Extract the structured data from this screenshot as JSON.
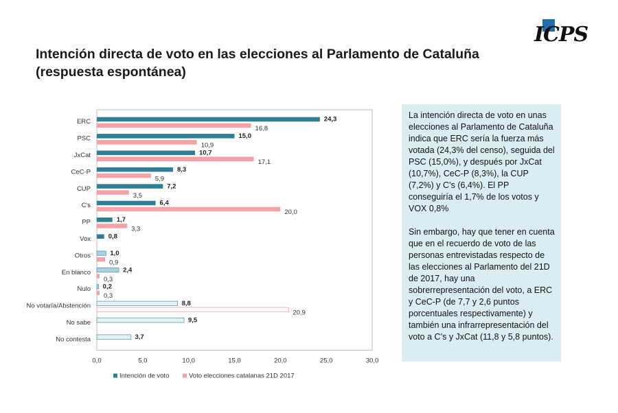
{
  "title": {
    "line1": "Intención directa de voto en las elecciones al Parlamento de Cataluña",
    "line2": "(respuesta espontánea)"
  },
  "logo": {
    "text": "ICPS",
    "icon": "blue-square-logo"
  },
  "note": {
    "paragraph1": "La intención directa de voto en unas elecciones al Parlamento de Cataluña indica que ERC sería la fuerza más votada (24,3% del censo), seguida del PSC (15,0%), y después por JxCat (10,7%), CeC-P (8,3%), la CUP (7,2%) y C’s (6,4%). El PP conseguiría el 1,7% de los votos y VOX 0,8%",
    "paragraph2": "Sin embargo, hay que tener en cuenta que en el recuerdo de voto de las personas entrevistadas respecto de las elecciones al Parlamento del 21D de 2017, hay una sobrerrepresentación del voto, a ERC y CeC-P  (de 7,7 y 2,6 puntos porcentuales respectivamente) y también una infrarrepresentación del voto a C’s y JxCat  (11,8 y 5,8 puntos)."
  },
  "colors": {
    "intencion": "#2e7f96",
    "voto2017": "#f4a1a8",
    "otros_intencion": "#a9cfe0",
    "light_fill": "#e4f1f7",
    "light_stroke": "#5b9fbf",
    "axis": "#bcbcbc"
  },
  "chart_data": {
    "type": "bar",
    "orientation": "horizontal",
    "categories": [
      "ERC",
      "PSC",
      "JxCat",
      "CeC-P",
      "CUP",
      "C's",
      "PP",
      "Vox",
      "Otros",
      "En blanco",
      "Nulo",
      "No votaría/Abstención",
      "No sabe",
      "No contesta"
    ],
    "series": [
      {
        "name": "Intención de voto",
        "values": [
          24.3,
          15.0,
          10.7,
          8.3,
          7.2,
          6.4,
          1.7,
          0.8,
          1.0,
          2.4,
          0.2,
          8.8,
          9.5,
          3.7
        ],
        "labels": [
          "24,3",
          "15,0",
          "10,7",
          "8,3",
          "7,2",
          "6,4",
          "1,7",
          "0,8",
          "1,0",
          "2,4",
          "0,2",
          "8,8",
          "9,5",
          "3,7"
        ]
      },
      {
        "name": "Voto elecciones catalanas 21D 2017",
        "values": [
          16.8,
          10.9,
          17.1,
          5.9,
          3.5,
          20.0,
          3.3,
          null,
          0.9,
          0.3,
          0.3,
          20.9,
          null,
          null
        ],
        "labels": [
          "16,8",
          "10,9",
          "17,1",
          "5,9",
          "3,5",
          "20,0",
          "3,3",
          null,
          "0,9",
          "0,3",
          "0,3",
          "20,9",
          null,
          null
        ]
      }
    ],
    "xlim": [
      0,
      30
    ],
    "xticks": [
      "0,0",
      "5,0",
      "10,0",
      "15,0",
      "20,0",
      "25,0",
      "30,0"
    ],
    "legend_position": "bottom",
    "grid": false,
    "title": "",
    "xlabel": "",
    "ylabel": ""
  }
}
